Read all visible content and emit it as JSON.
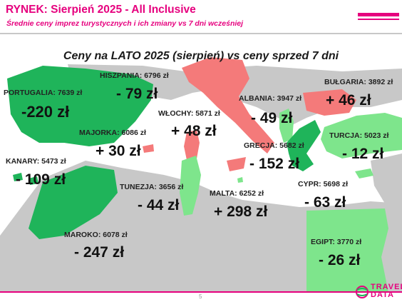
{
  "header": {
    "title": "RYNEK: Sierpień 2025 - All Inclusive",
    "subtitle": "Średnie ceny imprez turystycznych i ich zmiany vs 7 dni wcześniej"
  },
  "map_title": "Ceny na LATO 2025 (sierpień) vs ceny sprzed 7 dni",
  "colors": {
    "price_down": "#1fb45a",
    "price_down_light": "#7ee58c",
    "price_up": "#f47a7a",
    "land": "#c8c8c8",
    "sea": "#ffffff",
    "accent": "#e6007e"
  },
  "destinations": [
    {
      "label": "PORTUGALIA: 7639 zł",
      "change": "-220 zł"
    },
    {
      "label": "HISZPANIA: 6796 zł",
      "change": "- 79 zł"
    },
    {
      "label": "WŁOCHY: 5871 zł",
      "change": "+ 48 zł"
    },
    {
      "label": "ALBANIA: 3947 zł",
      "change": "- 49 zł"
    },
    {
      "label": "BUŁGARIA: 3892 zł",
      "change": "+ 46 zł"
    },
    {
      "label": "MAJORKA: 6086 zł",
      "change": "+ 30 zł"
    },
    {
      "label": "TURCJA: 5023 zł",
      "change": "- 12 zł"
    },
    {
      "label": "GRECJA: 5682 zł",
      "change": "- 152 zł"
    },
    {
      "label": "KANARY: 5473 zł",
      "change": "- 109 zł"
    },
    {
      "label": "TUNEZJA: 3656 zł",
      "change": "- 44 zł"
    },
    {
      "label": "MALTA: 6252 zł",
      "change": "+ 298 zł"
    },
    {
      "label": "CYPR: 5698 zł",
      "change": "- 63 zł"
    },
    {
      "label": "MAROKO: 6078 zł",
      "change": "- 247 zł"
    },
    {
      "label": "EGIPT: 3770 zł",
      "change": "- 26 zł"
    }
  ],
  "footer": {
    "page_number": "5",
    "logo_line1": "TRAVEL",
    "logo_line2": "DATA"
  }
}
